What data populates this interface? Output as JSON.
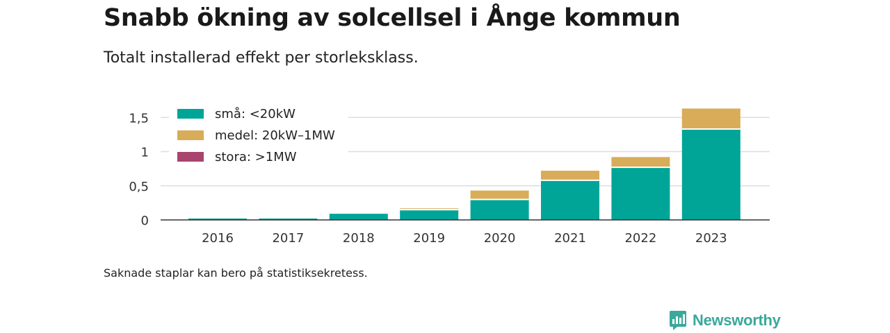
{
  "header": {
    "title": "Snabb ökning av solcellsel i Ånge kommun",
    "subtitle": "Totalt installerad effekt per storleksklass."
  },
  "footer": {
    "note": "Saknade staplar kan bero på statistiksekretess.",
    "brand": "Newsworthy"
  },
  "chart_data": {
    "type": "bar",
    "stacked": true,
    "categories": [
      "2016",
      "2017",
      "2018",
      "2019",
      "2020",
      "2021",
      "2022",
      "2023"
    ],
    "series": [
      {
        "name": "små: <20kW",
        "color": "#00a598",
        "values": [
          0.02,
          0.02,
          0.09,
          0.15,
          0.3,
          0.58,
          0.77,
          1.33
        ]
      },
      {
        "name": "medel: 20kW–1MW",
        "color": "#d8ac58",
        "values": [
          0,
          0,
          0,
          0.02,
          0.13,
          0.14,
          0.15,
          0.3
        ]
      },
      {
        "name": "stora: >1MW",
        "color": "#a8446e",
        "values": [
          0,
          0,
          0,
          0,
          0,
          0,
          0,
          0
        ]
      }
    ],
    "yticks": [
      {
        "value": 0,
        "label": "0"
      },
      {
        "value": 0.5,
        "label": "0,5"
      },
      {
        "value": 1,
        "label": "1"
      },
      {
        "value": 1.5,
        "label": "1,5"
      }
    ],
    "ylim": [
      0,
      1.65
    ],
    "grid": true,
    "legend": "top-left"
  }
}
